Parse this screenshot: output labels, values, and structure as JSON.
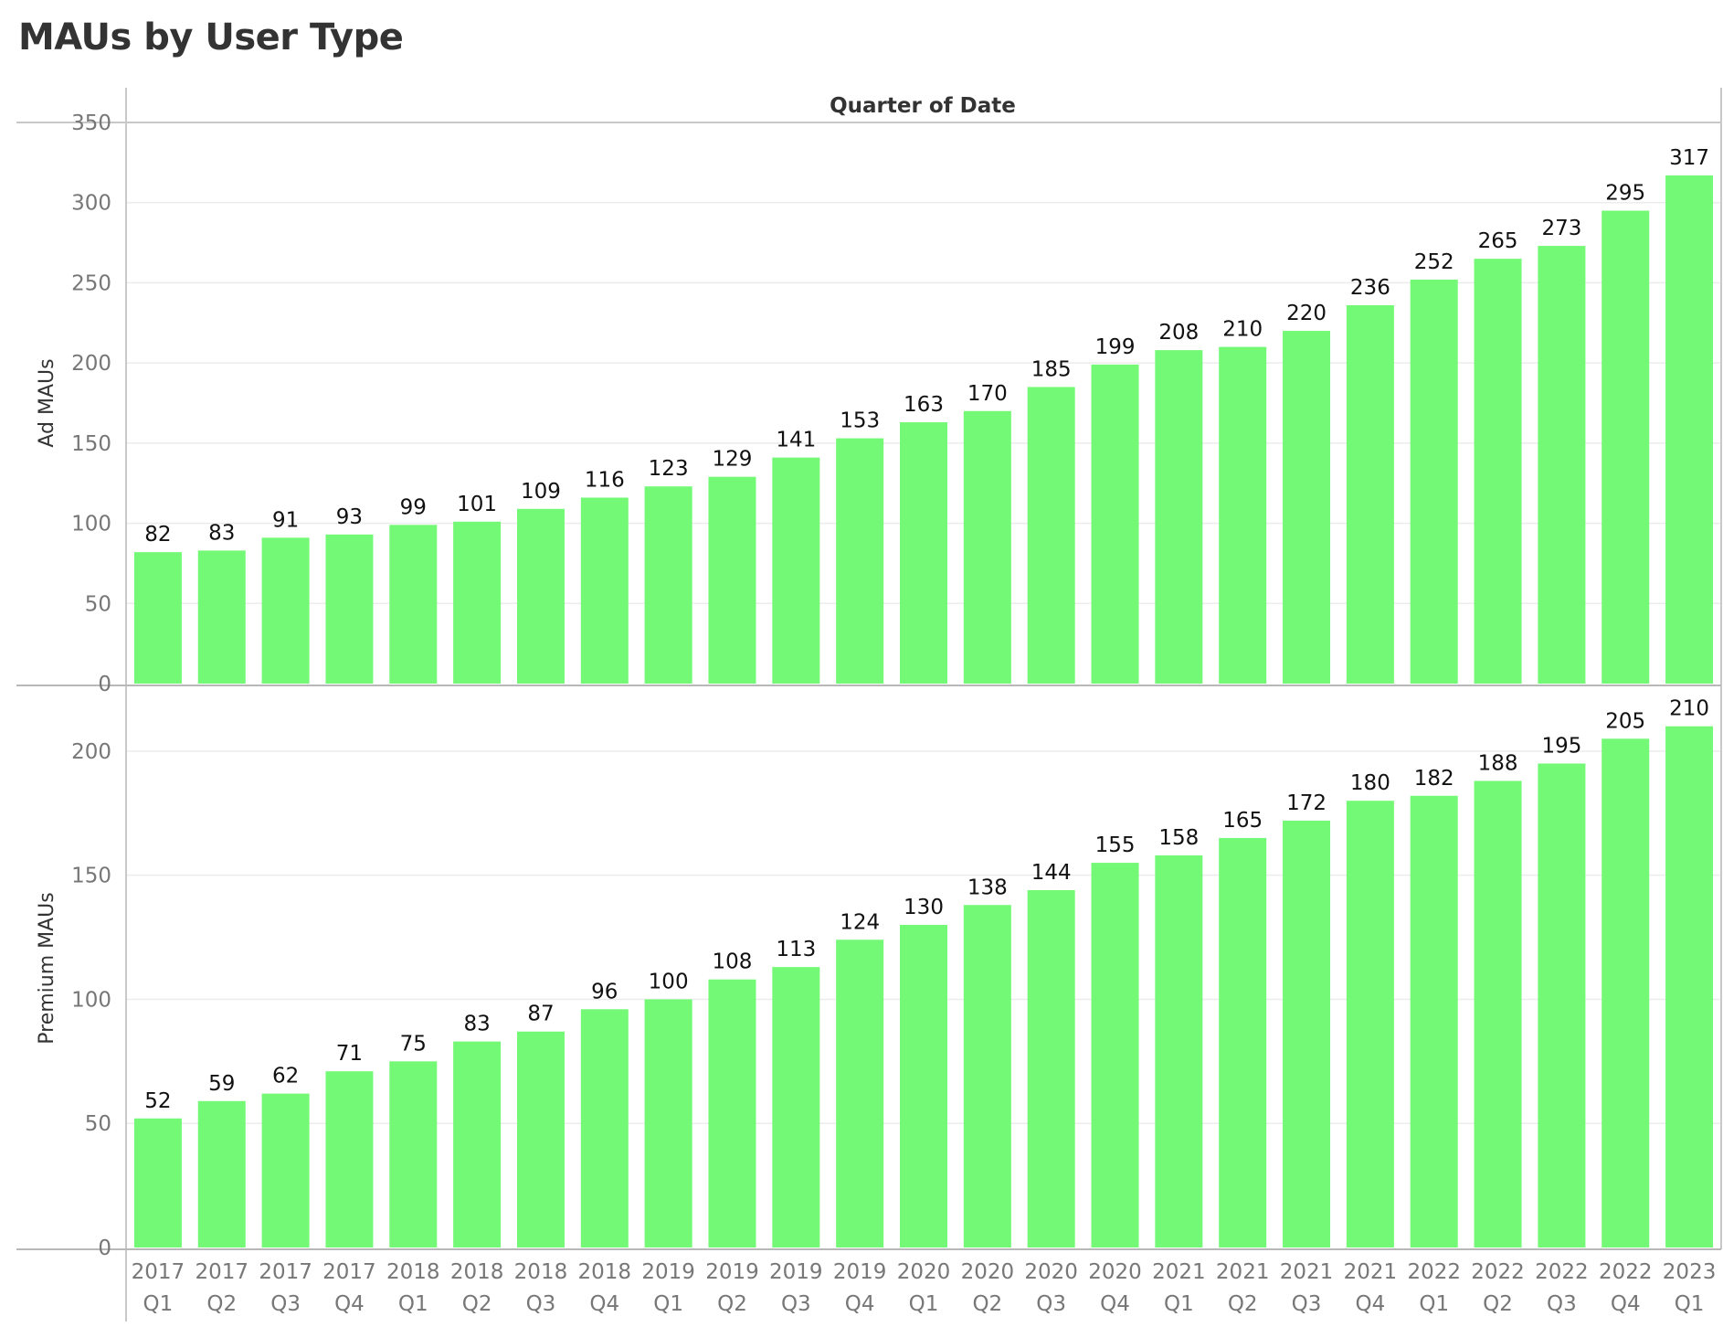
{
  "title": "MAUs by User Type",
  "chart_data": {
    "type": "bar",
    "column_header": "Quarter of Date",
    "categories": [
      [
        "2017",
        "Q1"
      ],
      [
        "2017",
        "Q2"
      ],
      [
        "2017",
        "Q3"
      ],
      [
        "2017",
        "Q4"
      ],
      [
        "2018",
        "Q1"
      ],
      [
        "2018",
        "Q2"
      ],
      [
        "2018",
        "Q3"
      ],
      [
        "2018",
        "Q4"
      ],
      [
        "2019",
        "Q1"
      ],
      [
        "2019",
        "Q2"
      ],
      [
        "2019",
        "Q3"
      ],
      [
        "2019",
        "Q4"
      ],
      [
        "2020",
        "Q1"
      ],
      [
        "2020",
        "Q2"
      ],
      [
        "2020",
        "Q3"
      ],
      [
        "2020",
        "Q4"
      ],
      [
        "2021",
        "Q1"
      ],
      [
        "2021",
        "Q2"
      ],
      [
        "2021",
        "Q3"
      ],
      [
        "2021",
        "Q4"
      ],
      [
        "2022",
        "Q1"
      ],
      [
        "2022",
        "Q2"
      ],
      [
        "2022",
        "Q3"
      ],
      [
        "2022",
        "Q4"
      ],
      [
        "2023",
        "Q1"
      ]
    ],
    "panels": [
      {
        "ylabel": "Ad MAUs",
        "ylim": [
          0,
          350
        ],
        "yticks": [
          0,
          50,
          100,
          150,
          200,
          250,
          300,
          350
        ],
        "values": [
          82,
          83,
          91,
          93,
          99,
          101,
          109,
          116,
          123,
          129,
          141,
          153,
          163,
          170,
          185,
          199,
          208,
          210,
          220,
          236,
          252,
          265,
          273,
          295,
          317
        ]
      },
      {
        "ylabel": "Premium MAUs",
        "ylim": [
          0,
          225
        ],
        "yticks": [
          0,
          50,
          100,
          150,
          200
        ],
        "values": [
          52,
          59,
          62,
          71,
          75,
          83,
          87,
          96,
          100,
          108,
          113,
          124,
          130,
          138,
          144,
          155,
          158,
          165,
          172,
          180,
          182,
          188,
          195,
          205,
          210
        ]
      }
    ],
    "bar_color": "#73f975",
    "grid": true,
    "legend": "none"
  }
}
